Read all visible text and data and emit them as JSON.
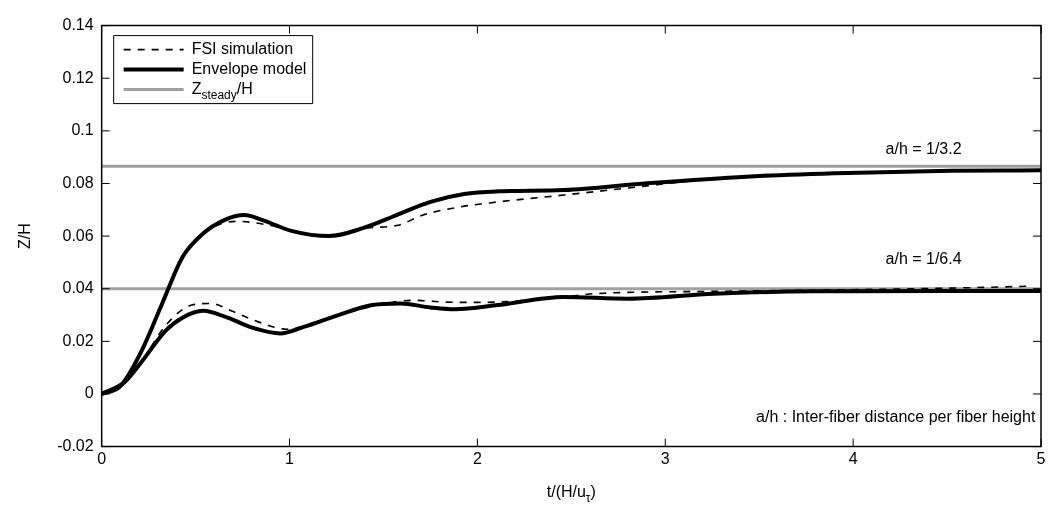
{
  "chart_data": {
    "type": "line",
    "xlabel": "t/(H/u$_{τ}$)",
    "ylabel": "Z/H",
    "xlim": [
      0,
      5
    ],
    "xticks": [
      0,
      1,
      2,
      3,
      4,
      5
    ],
    "ylim": [
      -0.02,
      0.14
    ],
    "yticks": [
      -0.02,
      0,
      0.02,
      0.04,
      0.06,
      0.08,
      0.1,
      0.12,
      0.14
    ],
    "grid": false,
    "legend": "top left",
    "marker": "none",
    "series": [
      {
        "name": "FSI simulation",
        "color": "#000000",
        "line_style": "dashed",
        "x": [
          0,
          0.1,
          0.21,
          0.32,
          0.43,
          0.54,
          0.65,
          0.72,
          0.9,
          1.01,
          1.21,
          1.39,
          1.57,
          1.71,
          1.9,
          2.11,
          2.46,
          2.89,
          3.07,
          3.43,
          3.97,
          4.52,
          5
        ],
        "values": [
          0,
          0.003,
          0.016,
          0.034,
          0.052,
          0.061,
          0.065,
          0.0656,
          0.064,
          0.062,
          0.06,
          0.063,
          0.064,
          0.068,
          0.071,
          0.073,
          0.0756,
          0.079,
          0.0805,
          0.0826,
          0.084,
          0.0848,
          0.085
        ]
      },
      {
        "color": "#000000",
        "line_style": "dashed",
        "x": [
          0,
          0.12,
          0.21,
          0.34,
          0.48,
          0.58,
          0.7,
          0.83,
          0.99,
          1.15,
          1.33,
          1.51,
          1.66,
          1.84,
          2.02,
          2.46,
          2.62,
          3.26,
          3.97,
          4.69,
          4.95
        ],
        "values": [
          0,
          0.0044,
          0.012,
          0.026,
          0.0338,
          0.0344,
          0.0313,
          0.0275,
          0.0246,
          0.0275,
          0.0313,
          0.0344,
          0.0356,
          0.0349,
          0.0348,
          0.0369,
          0.0381,
          0.039,
          0.0396,
          0.0405,
          0.041
        ]
      },
      {
        "name": "Envelope model",
        "color": "#000000",
        "line_style": "solid",
        "x": [
          0,
          0.1,
          0.21,
          0.32,
          0.43,
          0.54,
          0.65,
          0.76,
          0.86,
          1.01,
          1.21,
          1.39,
          1.57,
          1.75,
          1.93,
          2.11,
          2.46,
          2.89,
          3.43,
          3.97,
          4.52,
          5
        ],
        "values": [
          0,
          0.003,
          0.016,
          0.034,
          0.052,
          0.061,
          0.066,
          0.068,
          0.066,
          0.062,
          0.06,
          0.063,
          0.068,
          0.073,
          0.076,
          0.077,
          0.0775,
          0.08,
          0.0826,
          0.084,
          0.0848,
          0.085
        ]
      },
      {
        "color": "#000000",
        "line_style": "solid",
        "x": [
          0,
          0.12,
          0.21,
          0.34,
          0.43,
          0.54,
          0.67,
          0.81,
          0.95,
          1.08,
          1.26,
          1.44,
          1.59,
          1.75,
          1.88,
          2.11,
          2.46,
          2.8,
          3.26,
          3.8,
          4.52,
          5
        ],
        "values": [
          0,
          0.0044,
          0.012,
          0.024,
          0.029,
          0.0316,
          0.029,
          0.025,
          0.023,
          0.0256,
          0.03,
          0.0338,
          0.0344,
          0.0329,
          0.0322,
          0.0338,
          0.0369,
          0.0362,
          0.0381,
          0.039,
          0.0391,
          0.0391
        ]
      },
      {
        "name": "Z$_{steady}$/H",
        "color": "#a0a0a0",
        "line_style": "solid",
        "x": [
          0,
          5
        ],
        "values": [
          0.0865,
          0.0865
        ]
      },
      {
        "color": "#a0a0a0",
        "line_style": "solid",
        "x": [
          0,
          5
        ],
        "values": [
          0.04,
          0.04
        ]
      }
    ],
    "annotations": [
      "a/h = 1/3.2",
      "a/h = 1/6.4",
      "a/h : Inter-fiber distance per fiber height"
    ]
  }
}
